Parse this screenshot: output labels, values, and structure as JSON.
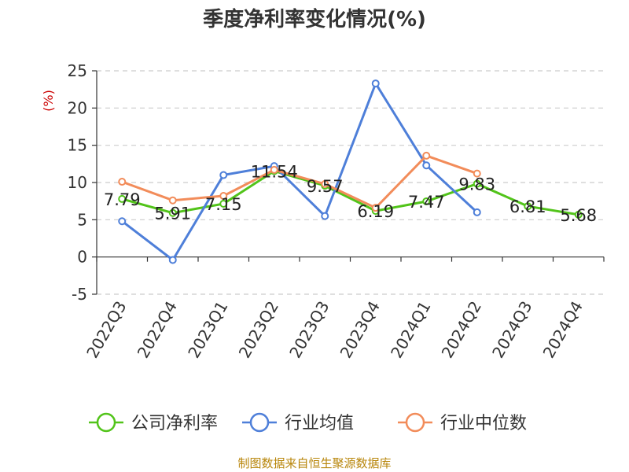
{
  "chart_data": {
    "type": "line",
    "title": "季度净利率变化情况(%)",
    "ylabel": "(%)",
    "xlabel": "",
    "ylim": [
      -5,
      25
    ],
    "yticks": [
      -5,
      0,
      5,
      10,
      15,
      20,
      25
    ],
    "grid": true,
    "legend": "bottom",
    "categories": [
      "2022Q3",
      "2022Q4",
      "2023Q1",
      "2023Q2",
      "2023Q3",
      "2023Q4",
      "2024Q1",
      "2024Q2",
      "2024Q3",
      "2024Q4"
    ],
    "series": [
      {
        "name": "公司净利率",
        "color": "#52c41a",
        "values": [
          7.79,
          5.91,
          7.15,
          11.54,
          9.57,
          6.19,
          7.47,
          9.83,
          6.81,
          5.68
        ],
        "labels": [
          "7.79",
          "5.91",
          "7.15",
          "11.54",
          "9.57",
          "6.19",
          "7.47",
          "9.83",
          "6.81",
          "5.68"
        ]
      },
      {
        "name": "行业均值",
        "color": "#4e7fd9",
        "values": [
          4.8,
          -0.4,
          11.0,
          12.2,
          5.5,
          23.3,
          12.3,
          6.0,
          null,
          null
        ]
      },
      {
        "name": "行业中位数",
        "color": "#f28c5a",
        "values": [
          10.1,
          7.6,
          8.2,
          11.7,
          9.8,
          6.6,
          13.6,
          11.2,
          null,
          null
        ]
      }
    ]
  },
  "footer": {
    "source": "制图数据来自恒生聚源数据库"
  }
}
